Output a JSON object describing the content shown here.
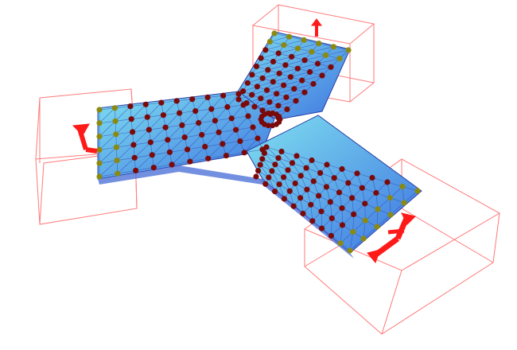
{
  "scene": {
    "background": "#ffffff",
    "colors": {
      "mesh_fill_light": "#6fd3ea",
      "mesh_fill_dark": "#3f6fe0",
      "mesh_edge": "#2b3fa8",
      "interior_node": "#7a0a0a",
      "boundary_node": "#8a8a10",
      "arrow": "#ff1a1a",
      "box_edge": "#ff7070"
    },
    "icons": [
      "force-arrow-icon",
      "node-marker-icon",
      "bounding-box-icon"
    ]
  }
}
